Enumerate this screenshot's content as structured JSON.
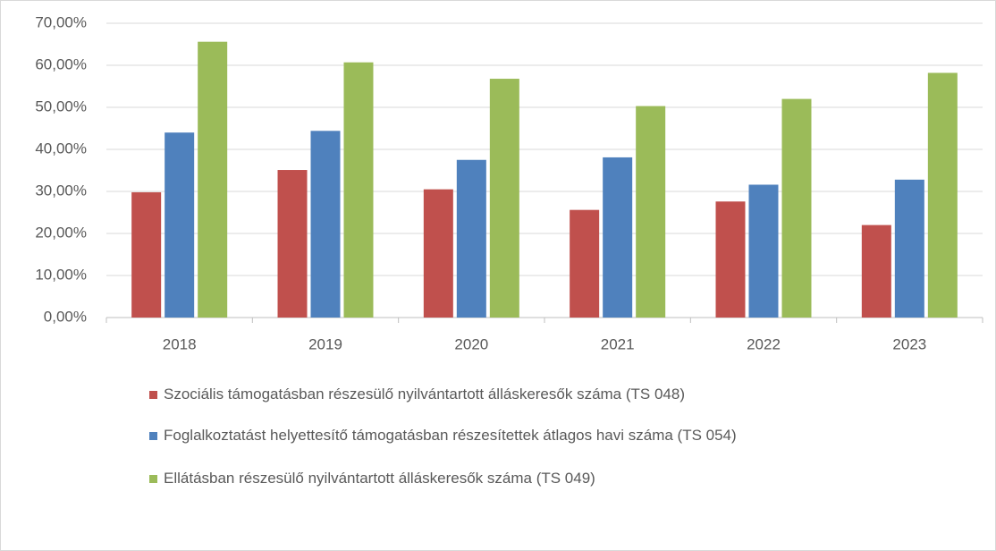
{
  "chart_data": {
    "type": "bar",
    "categories": [
      "2018",
      "2019",
      "2020",
      "2021",
      "2022",
      "2023"
    ],
    "series": [
      {
        "name": "Szociális támogatásban részesülő nyilvántartott álláskeresők száma (TS 048)",
        "color": "#c0504d",
        "values": [
          29.8,
          35.1,
          30.5,
          25.6,
          27.6,
          22.0
        ]
      },
      {
        "name": "Foglalkoztatást helyettesítő támogatásban részesítettek átlagos havi száma (TS 054)",
        "color": "#4f81bd",
        "values": [
          44.0,
          44.4,
          37.5,
          38.1,
          31.6,
          32.8
        ]
      },
      {
        "name": "Ellátásban részesülő nyilvántartott álláskeresők száma (TS 049)",
        "color": "#9bbb59",
        "values": [
          65.6,
          60.7,
          56.8,
          50.3,
          52.0,
          58.2
        ]
      }
    ],
    "ylim": [
      0,
      70
    ],
    "yticks": [
      {
        "value": 0,
        "label": "0,00%"
      },
      {
        "value": 10,
        "label": "10,00%"
      },
      {
        "value": 20,
        "label": "20,00%"
      },
      {
        "value": 30,
        "label": "30,00%"
      },
      {
        "value": 40,
        "label": "40,00%"
      },
      {
        "value": 50,
        "label": "50,00%"
      },
      {
        "value": 60,
        "label": "60,00%"
      },
      {
        "value": 70,
        "label": "70,00%"
      }
    ],
    "grid": true,
    "legend": "bottom"
  }
}
